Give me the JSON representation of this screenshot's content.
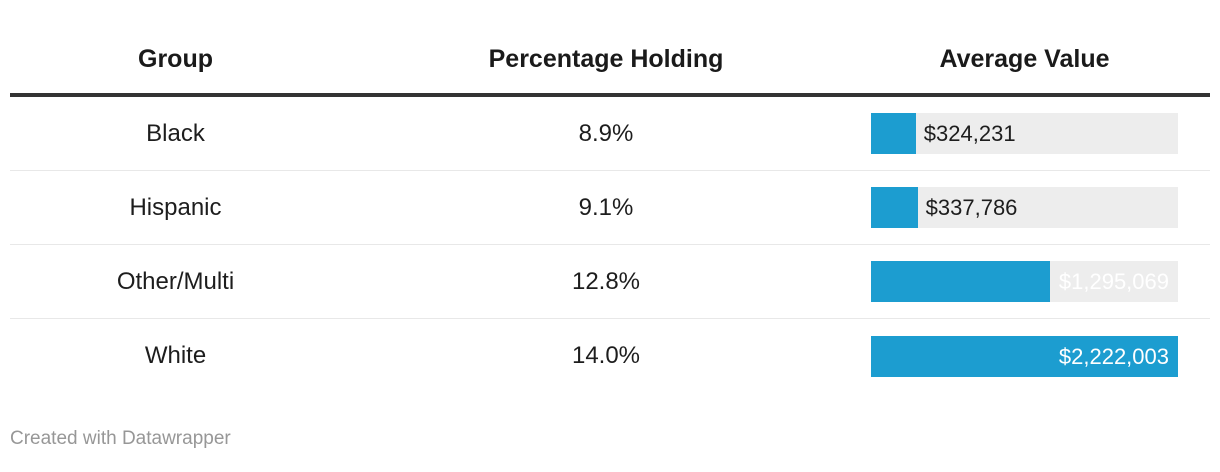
{
  "table": {
    "columns": [
      {
        "label": "Group"
      },
      {
        "label": "Percentage Holding"
      },
      {
        "label": "Average Value"
      }
    ],
    "rows": [
      {
        "group": "Black",
        "percentage": "8.9%",
        "avg_label": "$324,231",
        "avg_value": 324231
      },
      {
        "group": "Hispanic",
        "percentage": "9.1%",
        "avg_label": "$337,786",
        "avg_value": 337786
      },
      {
        "group": "Other/Multi",
        "percentage": "12.8%",
        "avg_label": "$1,295,069",
        "avg_value": 1295069
      },
      {
        "group": "White",
        "percentage": "14.0%",
        "avg_label": "$2,222,003",
        "avg_value": 2222003
      }
    ]
  },
  "chart_data": {
    "type": "table",
    "title": "",
    "columns": [
      "Group",
      "Percentage Holding",
      "Average Value"
    ],
    "categories": [
      "Black",
      "Hispanic",
      "Other/Multi",
      "White"
    ],
    "series": [
      {
        "name": "Percentage Holding",
        "values": [
          8.9,
          9.1,
          12.8,
          14.0
        ],
        "unit": "%"
      },
      {
        "name": "Average Value",
        "values": [
          324231,
          337786,
          1295069,
          2222003
        ],
        "unit": "$",
        "display": "bar",
        "bar_scale_max": 2222003
      }
    ],
    "layout": {
      "bars_in_column": "Average Value",
      "bar_labels_shown": true,
      "grid": false,
      "legend": "none"
    }
  },
  "colors": {
    "bar_fill": "#1c9dd0",
    "bar_track": "#ededed",
    "header_rule": "#333333",
    "row_separator": "#e8e8e8",
    "text": "#1d1d1d",
    "credit_text": "#979797"
  },
  "footer": {
    "credit": "Created with Datawrapper"
  }
}
